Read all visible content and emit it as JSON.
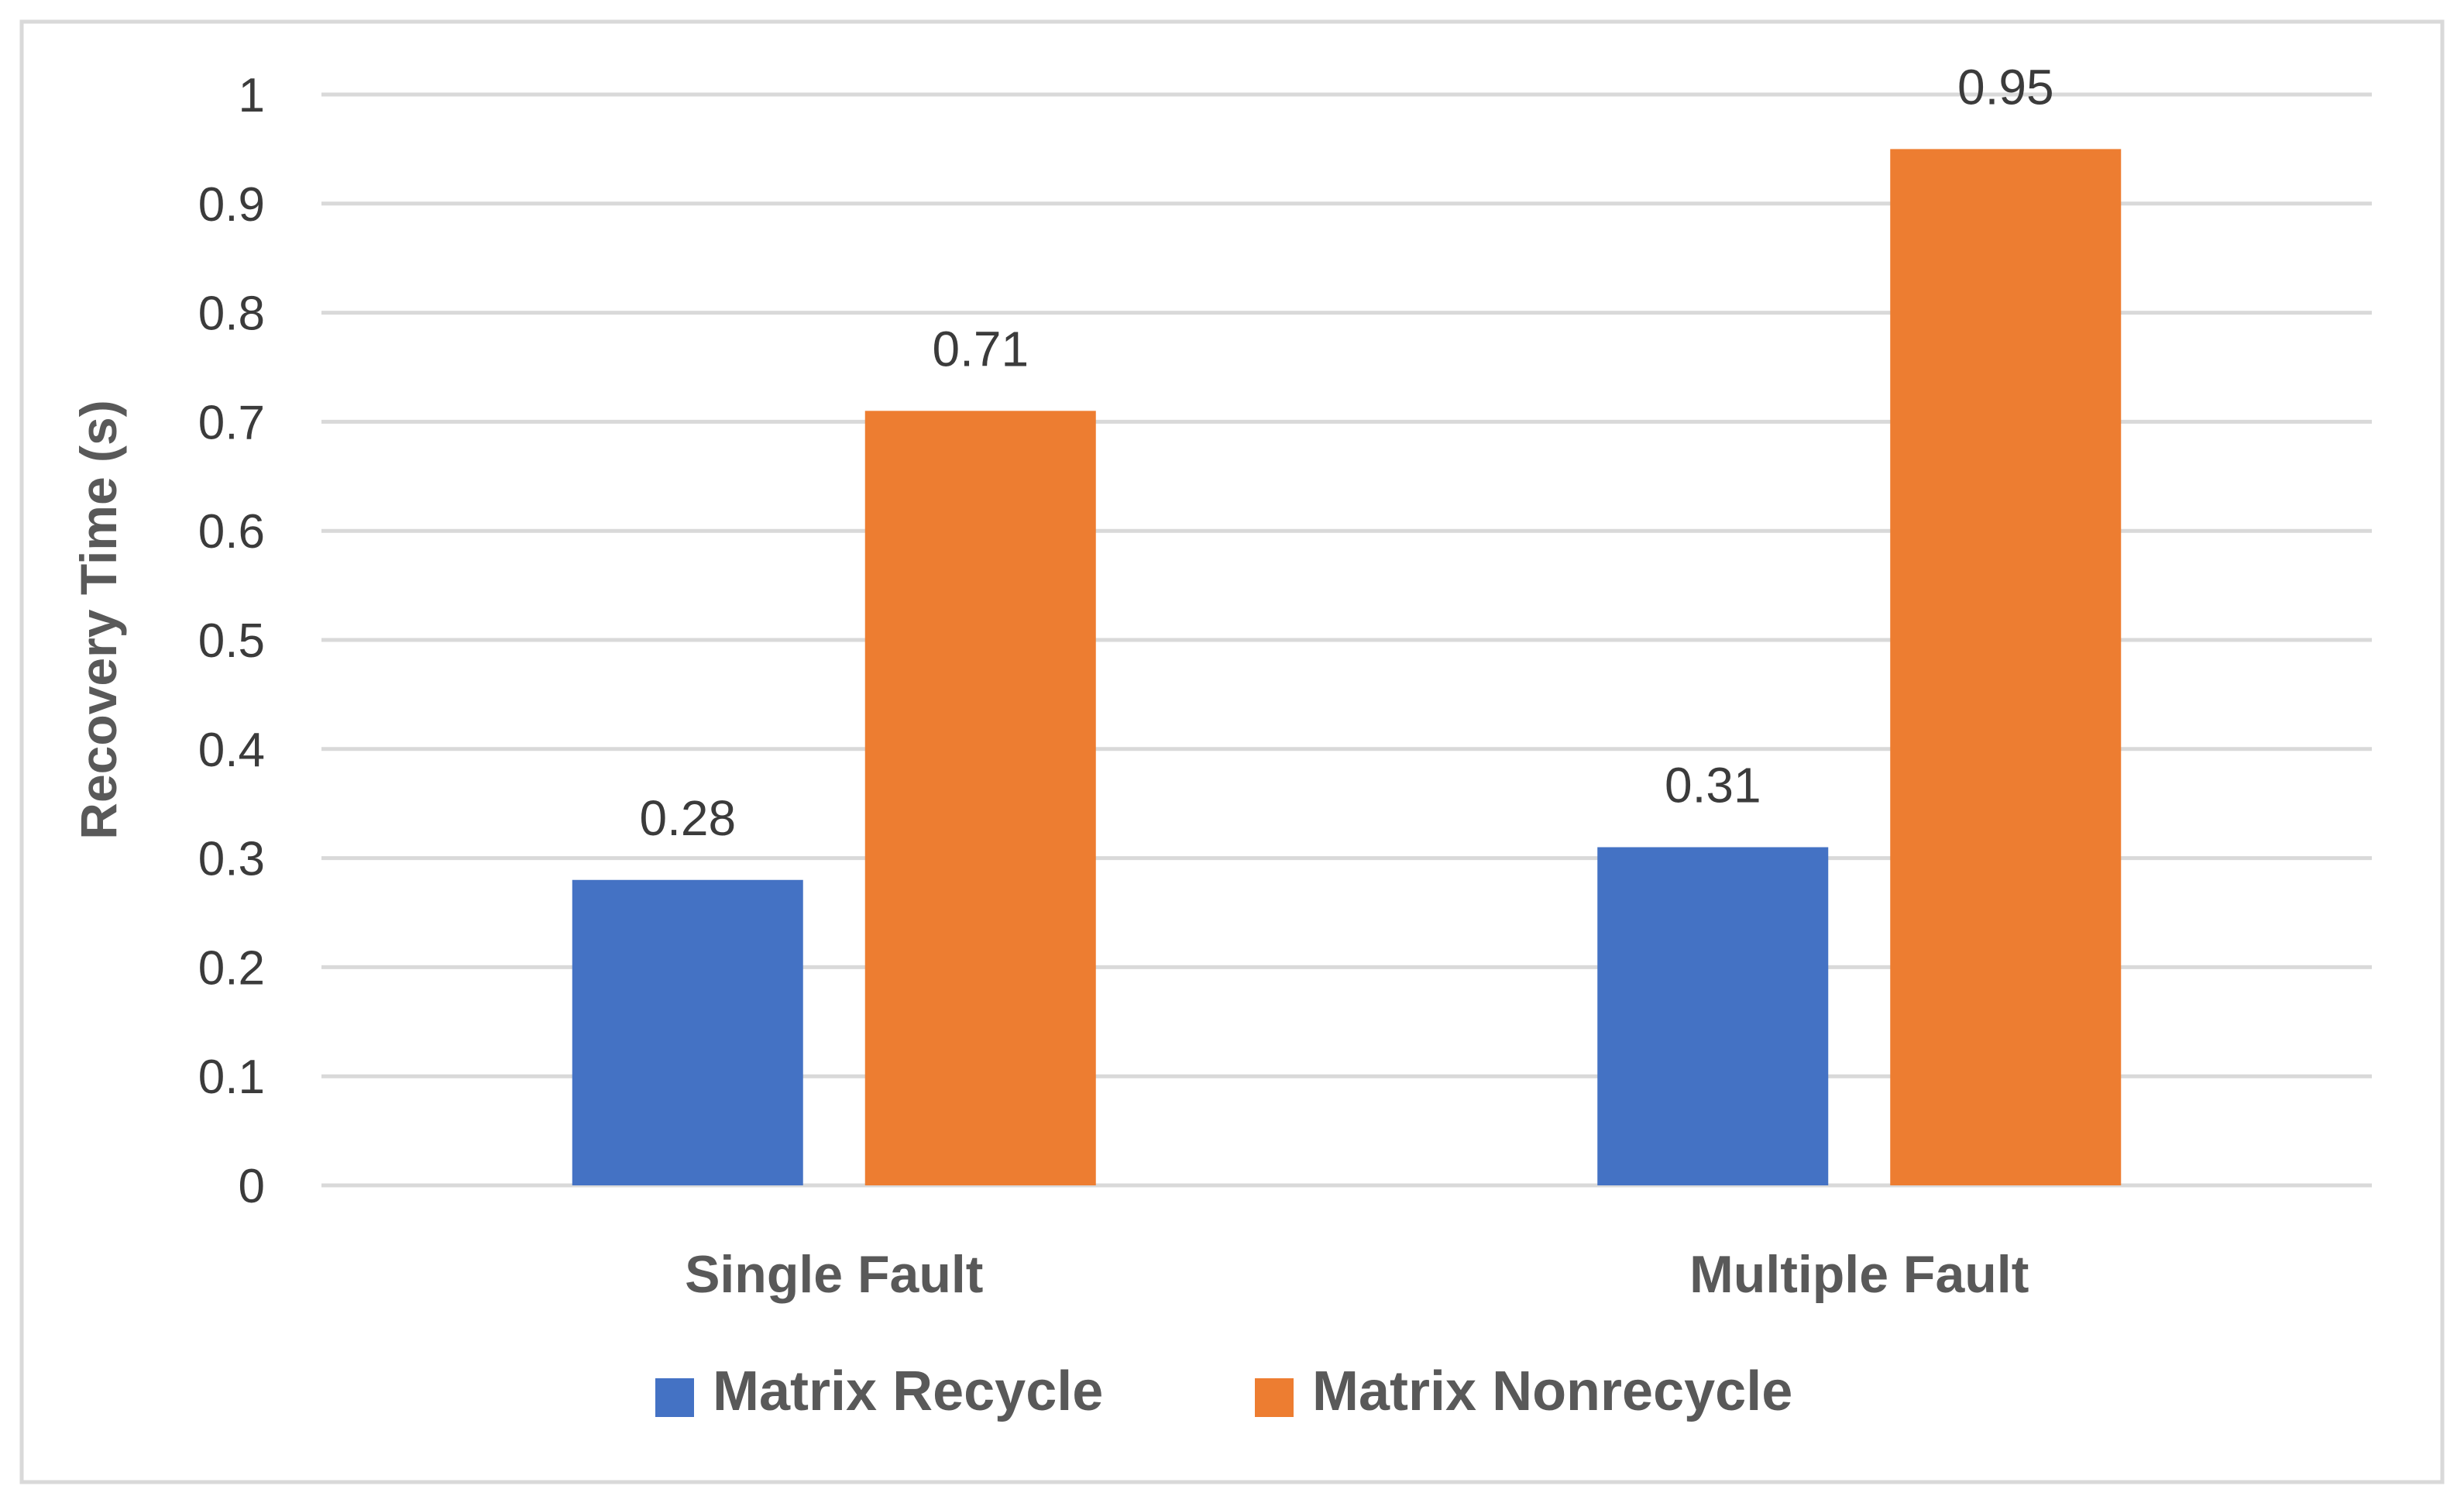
{
  "chart_data": {
    "type": "bar",
    "title": "",
    "xlabel": "",
    "ylabel": "Recovery Time (s)",
    "ylim": [
      0,
      1
    ],
    "yticks": [
      "0",
      "0.1",
      "0.2",
      "0.3",
      "0.4",
      "0.5",
      "0.6",
      "0.7",
      "0.8",
      "0.9",
      "1"
    ],
    "grid": true,
    "legend_position": "bottom",
    "categories": [
      "Single Fault",
      "Multiple Fault"
    ],
    "series": [
      {
        "name": "Matrix Recycle",
        "color": "#4472C4",
        "values": [
          0.28,
          0.31
        ],
        "labels": [
          "0.28",
          "0.31"
        ]
      },
      {
        "name": "Matrix Nonrecycle",
        "color": "#ED7D31",
        "values": [
          0.71,
          0.95
        ],
        "labels": [
          "0.71",
          "0.95"
        ]
      }
    ]
  }
}
